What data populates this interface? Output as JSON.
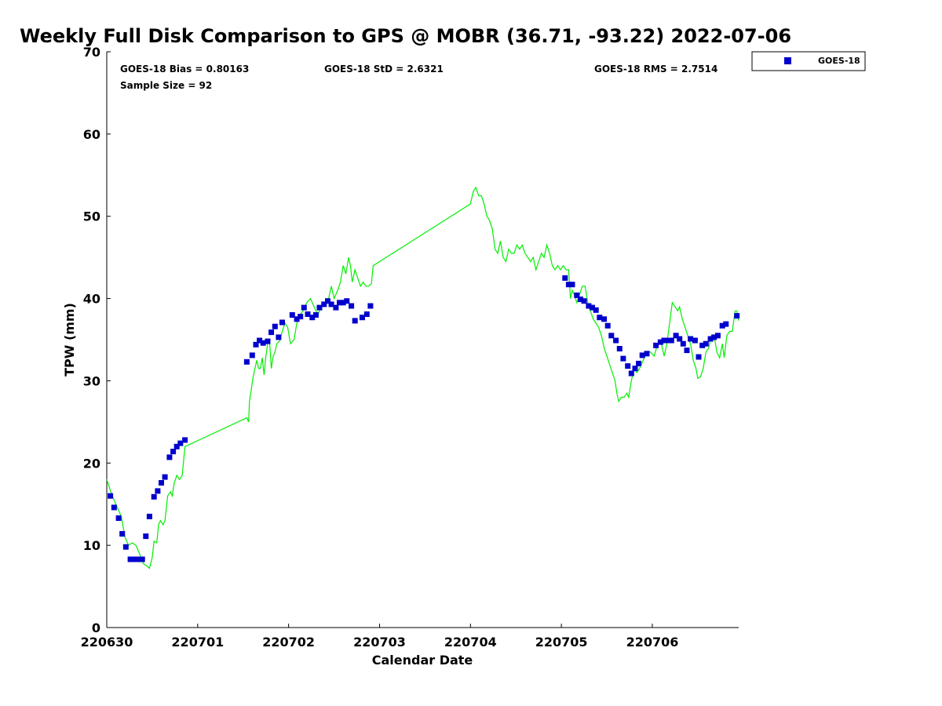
{
  "chart_data": {
    "type": "scatter",
    "title": "Weekly Full Disk Comparison to GPS @ MOBR (36.71, -93.22) 2022-07-06",
    "xlabel": "Calendar Date",
    "ylabel": "TPW (mm)",
    "xlim": [
      0,
      6.95
    ],
    "ylim": [
      0,
      70
    ],
    "x_unit": "days since 220630",
    "x_ticks": [
      {
        "value": 0,
        "label": "220630"
      },
      {
        "value": 1,
        "label": "220701"
      },
      {
        "value": 2,
        "label": "220702"
      },
      {
        "value": 3,
        "label": "220703"
      },
      {
        "value": 4,
        "label": "220704"
      },
      {
        "value": 5,
        "label": "220705"
      },
      {
        "value": 6,
        "label": "220706"
      }
    ],
    "y_ticks": [
      0,
      10,
      20,
      30,
      40,
      50,
      60,
      70
    ],
    "grid": false,
    "legend": {
      "placement": "top-right",
      "entries": [
        "GOES-18"
      ]
    },
    "stats": {
      "bias": "GOES-18 Bias = 0.80163",
      "std": "GOES-18 StD = 2.6321",
      "rms": "GOES-18 RMS = 2.7514",
      "sample": "Sample Size = 92"
    },
    "colors": {
      "goes": "#0000cc",
      "gps": "#00ee00"
    },
    "series": [
      {
        "name": "GOES-18",
        "style": "square-markers",
        "points": [
          [
            0.04,
            16.0
          ],
          [
            0.08,
            14.6
          ],
          [
            0.13,
            13.3
          ],
          [
            0.17,
            11.4
          ],
          [
            0.21,
            9.8
          ],
          [
            0.26,
            8.3
          ],
          [
            0.3,
            8.3
          ],
          [
            0.34,
            8.3
          ],
          [
            0.39,
            8.3
          ],
          [
            0.43,
            11.1
          ],
          [
            0.47,
            13.5
          ],
          [
            0.52,
            15.9
          ],
          [
            0.56,
            16.6
          ],
          [
            0.6,
            17.6
          ],
          [
            0.64,
            18.3
          ],
          [
            0.69,
            20.7
          ],
          [
            0.73,
            21.4
          ],
          [
            0.77,
            22.0
          ],
          [
            0.81,
            22.4
          ],
          [
            0.86,
            22.8
          ],
          [
            1.54,
            32.3
          ],
          [
            1.6,
            33.1
          ],
          [
            1.64,
            34.4
          ],
          [
            1.68,
            34.9
          ],
          [
            1.72,
            34.6
          ],
          [
            1.77,
            34.8
          ],
          [
            1.81,
            35.9
          ],
          [
            1.85,
            36.6
          ],
          [
            1.89,
            35.3
          ],
          [
            1.93,
            37.1
          ],
          [
            2.04,
            38.0
          ],
          [
            2.09,
            37.5
          ],
          [
            2.13,
            37.8
          ],
          [
            2.17,
            38.9
          ],
          [
            2.21,
            38.1
          ],
          [
            2.26,
            37.7
          ],
          [
            2.3,
            38.0
          ],
          [
            2.34,
            38.9
          ],
          [
            2.39,
            39.3
          ],
          [
            2.43,
            39.7
          ],
          [
            2.47,
            39.3
          ],
          [
            2.52,
            38.9
          ],
          [
            2.56,
            39.5
          ],
          [
            2.6,
            39.5
          ],
          [
            2.64,
            39.7
          ],
          [
            2.69,
            39.1
          ],
          [
            2.73,
            37.3
          ],
          [
            2.81,
            37.7
          ],
          [
            2.86,
            38.1
          ],
          [
            2.9,
            39.1
          ],
          [
            5.04,
            42.5
          ],
          [
            5.08,
            41.7
          ],
          [
            5.12,
            41.7
          ],
          [
            5.17,
            40.4
          ],
          [
            5.21,
            39.9
          ],
          [
            5.25,
            39.7
          ],
          [
            5.3,
            39.1
          ],
          [
            5.34,
            38.9
          ],
          [
            5.38,
            38.6
          ],
          [
            5.42,
            37.7
          ],
          [
            5.47,
            37.5
          ],
          [
            5.51,
            36.7
          ],
          [
            5.55,
            35.5
          ],
          [
            5.6,
            34.9
          ],
          [
            5.64,
            33.9
          ],
          [
            5.68,
            32.7
          ],
          [
            5.73,
            31.8
          ],
          [
            5.77,
            30.9
          ],
          [
            5.81,
            31.5
          ],
          [
            5.85,
            32.1
          ],
          [
            5.89,
            33.1
          ],
          [
            5.94,
            33.3
          ],
          [
            6.04,
            34.3
          ],
          [
            6.09,
            34.7
          ],
          [
            6.13,
            34.9
          ],
          [
            6.17,
            34.9
          ],
          [
            6.21,
            34.9
          ],
          [
            6.26,
            35.5
          ],
          [
            6.3,
            35.1
          ],
          [
            6.34,
            34.5
          ],
          [
            6.38,
            33.7
          ],
          [
            6.42,
            35.1
          ],
          [
            6.47,
            34.9
          ],
          [
            6.51,
            32.9
          ],
          [
            6.55,
            34.3
          ],
          [
            6.59,
            34.5
          ],
          [
            6.64,
            35.1
          ],
          [
            6.68,
            35.3
          ],
          [
            6.72,
            35.5
          ],
          [
            6.77,
            36.7
          ],
          [
            6.81,
            36.9
          ],
          [
            6.93,
            37.9
          ]
        ]
      },
      {
        "style": "line",
        "points": [
          [
            0.0,
            18.0
          ],
          [
            0.06,
            16.0
          ],
          [
            0.12,
            14.5
          ],
          [
            0.16,
            13.5
          ],
          [
            0.2,
            11.0
          ],
          [
            0.24,
            10.0
          ],
          [
            0.28,
            10.3
          ],
          [
            0.32,
            10.0
          ],
          [
            0.36,
            9.0
          ],
          [
            0.4,
            7.8
          ],
          [
            0.44,
            7.5
          ],
          [
            0.47,
            7.2
          ],
          [
            0.5,
            8.5
          ],
          [
            0.52,
            10.5
          ],
          [
            0.55,
            10.3
          ],
          [
            0.57,
            12.5
          ],
          [
            0.59,
            13.0
          ],
          [
            0.62,
            12.5
          ],
          [
            0.64,
            13.0
          ],
          [
            0.67,
            16.0
          ],
          [
            0.7,
            16.5
          ],
          [
            0.72,
            16.0
          ],
          [
            0.74,
            17.5
          ],
          [
            0.77,
            18.5
          ],
          [
            0.8,
            18.0
          ],
          [
            0.83,
            18.5
          ],
          [
            0.86,
            22.0
          ],
          [
            1.54,
            25.5
          ],
          [
            1.56,
            25.0
          ],
          [
            1.57,
            27.5
          ],
          [
            1.59,
            29.0
          ],
          [
            1.61,
            30.5
          ],
          [
            1.63,
            31.5
          ],
          [
            1.65,
            32.5
          ],
          [
            1.67,
            31.5
          ],
          [
            1.69,
            31.5
          ],
          [
            1.71,
            32.8
          ],
          [
            1.73,
            30.7
          ],
          [
            1.75,
            33.0
          ],
          [
            1.77,
            34.5
          ],
          [
            1.79,
            35.0
          ],
          [
            1.81,
            31.5
          ],
          [
            1.83,
            33.0
          ],
          [
            1.85,
            33.5
          ],
          [
            1.87,
            34.5
          ],
          [
            1.9,
            34.8
          ],
          [
            1.93,
            36.0
          ],
          [
            1.96,
            37.0
          ],
          [
            1.99,
            36.5
          ],
          [
            2.02,
            34.5
          ],
          [
            2.06,
            35.0
          ],
          [
            2.09,
            37.0
          ],
          [
            2.12,
            38.0
          ],
          [
            2.16,
            38.5
          ],
          [
            2.2,
            39.5
          ],
          [
            2.24,
            40.0
          ],
          [
            2.28,
            39.0
          ],
          [
            2.32,
            38.0
          ],
          [
            2.36,
            39.0
          ],
          [
            2.4,
            39.5
          ],
          [
            2.44,
            40.0
          ],
          [
            2.47,
            41.5
          ],
          [
            2.5,
            40.0
          ],
          [
            2.54,
            41.0
          ],
          [
            2.57,
            42.0
          ],
          [
            2.6,
            44.0
          ],
          [
            2.63,
            43.0
          ],
          [
            2.66,
            45.0
          ],
          [
            2.68,
            44.0
          ],
          [
            2.7,
            42.0
          ],
          [
            2.73,
            43.5
          ],
          [
            2.76,
            42.5
          ],
          [
            2.79,
            41.5
          ],
          [
            2.82,
            42.0
          ],
          [
            2.85,
            41.5
          ],
          [
            2.88,
            41.5
          ],
          [
            2.91,
            41.8
          ],
          [
            2.93,
            44.0
          ],
          [
            4.0,
            51.5
          ],
          [
            4.03,
            53.0
          ],
          [
            4.06,
            53.5
          ],
          [
            4.09,
            52.5
          ],
          [
            4.12,
            52.5
          ],
          [
            4.15,
            51.5
          ],
          [
            4.18,
            50.0
          ],
          [
            4.21,
            49.5
          ],
          [
            4.24,
            48.5
          ],
          [
            4.27,
            46.0
          ],
          [
            4.3,
            45.5
          ],
          [
            4.33,
            47.0
          ],
          [
            4.36,
            45.0
          ],
          [
            4.39,
            44.5
          ],
          [
            4.42,
            46.0
          ],
          [
            4.45,
            45.5
          ],
          [
            4.48,
            45.5
          ],
          [
            4.51,
            46.5
          ],
          [
            4.54,
            46.0
          ],
          [
            4.57,
            46.5
          ],
          [
            4.6,
            45.5
          ],
          [
            4.63,
            45.0
          ],
          [
            4.66,
            44.5
          ],
          [
            4.69,
            45.0
          ],
          [
            4.72,
            43.5
          ],
          [
            4.75,
            44.5
          ],
          [
            4.78,
            45.5
          ],
          [
            4.81,
            45.0
          ],
          [
            4.84,
            46.5
          ],
          [
            4.87,
            45.5
          ],
          [
            4.9,
            44.0
          ],
          [
            4.93,
            43.5
          ],
          [
            4.96,
            44.0
          ],
          [
            4.99,
            43.5
          ],
          [
            5.02,
            44.0
          ],
          [
            5.05,
            43.5
          ],
          [
            5.08,
            43.5
          ],
          [
            5.1,
            40.0
          ],
          [
            5.12,
            41.0
          ],
          [
            5.14,
            40.5
          ],
          [
            5.17,
            39.5
          ],
          [
            5.2,
            40.5
          ],
          [
            5.23,
            41.5
          ],
          [
            5.26,
            41.5
          ],
          [
            5.29,
            39.5
          ],
          [
            5.32,
            38.5
          ],
          [
            5.35,
            37.5
          ],
          [
            5.38,
            37.0
          ],
          [
            5.41,
            36.5
          ],
          [
            5.44,
            35.5
          ],
          [
            5.47,
            34.0
          ],
          [
            5.5,
            33.0
          ],
          [
            5.53,
            32.0
          ],
          [
            5.56,
            31.0
          ],
          [
            5.59,
            30.0
          ],
          [
            5.61,
            28.5
          ],
          [
            5.63,
            27.5
          ],
          [
            5.66,
            28.0
          ],
          [
            5.69,
            28.0
          ],
          [
            5.72,
            28.5
          ],
          [
            5.74,
            28.0
          ],
          [
            5.77,
            30.0
          ],
          [
            5.8,
            31.5
          ],
          [
            5.83,
            31.0
          ],
          [
            5.86,
            31.5
          ],
          [
            5.9,
            32.5
          ],
          [
            5.94,
            33.5
          ],
          [
            5.98,
            33.5
          ],
          [
            6.02,
            33.0
          ],
          [
            6.06,
            34.5
          ],
          [
            6.1,
            34.5
          ],
          [
            6.13,
            33.0
          ],
          [
            6.16,
            34.5
          ],
          [
            6.19,
            37.0
          ],
          [
            6.22,
            39.5
          ],
          [
            6.25,
            39.0
          ],
          [
            6.28,
            38.5
          ],
          [
            6.3,
            39.0
          ],
          [
            6.33,
            37.5
          ],
          [
            6.36,
            36.5
          ],
          [
            6.39,
            35.5
          ],
          [
            6.42,
            34.5
          ],
          [
            6.45,
            32.5
          ],
          [
            6.48,
            31.5
          ],
          [
            6.5,
            30.3
          ],
          [
            6.53,
            30.5
          ],
          [
            6.56,
            31.5
          ],
          [
            6.59,
            33.5
          ],
          [
            6.62,
            34.0
          ],
          [
            6.65,
            35.5
          ],
          [
            6.68,
            35.5
          ],
          [
            6.71,
            33.5
          ],
          [
            6.74,
            32.8
          ],
          [
            6.77,
            34.5
          ],
          [
            6.79,
            32.8
          ],
          [
            6.82,
            35.5
          ],
          [
            6.85,
            36.0
          ],
          [
            6.88,
            36.0
          ],
          [
            6.91,
            38.5
          ],
          [
            6.93,
            38.5
          ],
          [
            6.95,
            37.3
          ]
        ]
      }
    ]
  }
}
